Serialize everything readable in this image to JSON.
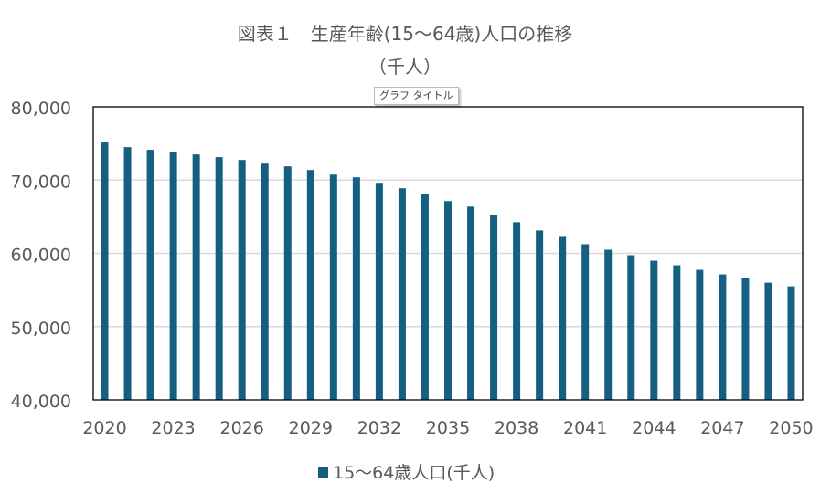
{
  "chart_data": {
    "type": "bar",
    "title": "図表１　生産年齢(15～64歳)人口の推移",
    "subtitle": "（千人）",
    "xlabel": "",
    "ylabel": "",
    "ylim": [
      40000,
      80000
    ],
    "yticks": [
      "40,000",
      "50,000",
      "60,000",
      "70,000",
      "80,000"
    ],
    "xtick_labels": [
      "2020",
      "2023",
      "2026",
      "2029",
      "2032",
      "2035",
      "2038",
      "2041",
      "2044",
      "2047",
      "2050"
    ],
    "grid": true,
    "legend_position": "bottom",
    "categories": [
      2020,
      2021,
      2022,
      2023,
      2024,
      2025,
      2026,
      2027,
      2028,
      2029,
      2030,
      2031,
      2032,
      2033,
      2034,
      2035,
      2036,
      2037,
      2038,
      2039,
      2040,
      2041,
      2042,
      2043,
      2044,
      2045,
      2046,
      2047,
      2048,
      2049,
      2050
    ],
    "series": [
      {
        "name": "15～64歳人口(千人)",
        "color": "#156082",
        "values": [
          75130,
          74500,
          74130,
          73880,
          73500,
          73130,
          72750,
          72250,
          71880,
          71380,
          70750,
          70380,
          69630,
          68880,
          68130,
          67130,
          66380,
          65250,
          64250,
          63130,
          62250,
          61250,
          60500,
          59750,
          59000,
          58380,
          57750,
          57130,
          56630,
          56000,
          55500
        ]
      }
    ]
  },
  "tooltip": "グラフ タイトル"
}
